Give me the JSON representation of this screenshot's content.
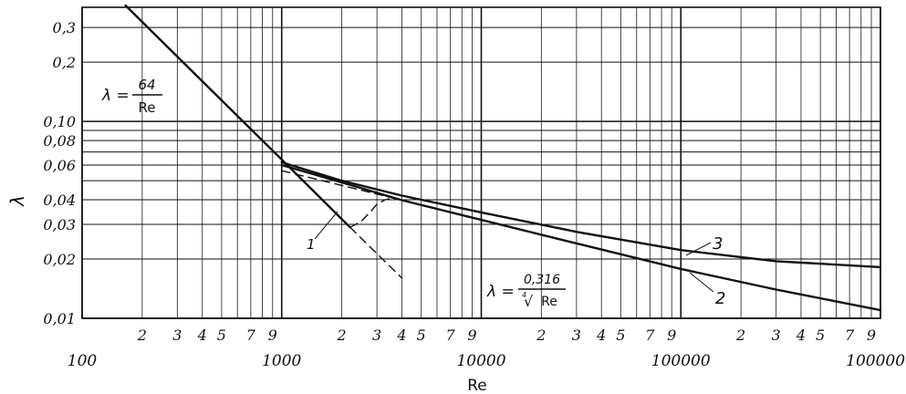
{
  "chart_data": {
    "type": "line",
    "x_scale": "log",
    "y_scale": "log",
    "xlim": [
      100,
      1000000
    ],
    "ylim": [
      0.01,
      0.38
    ],
    "xlabel": "Re",
    "ylabel": "λ",
    "grid": true,
    "x_major_ticks": [
      {
        "value": 100,
        "label": "100"
      },
      {
        "value": 1000,
        "label": "1000"
      },
      {
        "value": 10000,
        "label": "10000"
      },
      {
        "value": 100000,
        "label": "100000"
      },
      {
        "value": 1000000,
        "label": "1000000"
      }
    ],
    "x_minor_labels": [
      "2",
      "3",
      "4",
      "5",
      "7",
      "9"
    ],
    "x_minor_values": [
      2,
      3,
      4,
      5,
      7,
      9
    ],
    "x_grid_multipliers": [
      2,
      3,
      4,
      5,
      6,
      7,
      8,
      9
    ],
    "y_ticks": [
      {
        "value": 0.01,
        "label": "0,01"
      },
      {
        "value": 0.02,
        "label": "0,02"
      },
      {
        "value": 0.03,
        "label": "0,03"
      },
      {
        "value": 0.04,
        "label": "0,04"
      },
      {
        "value": 0.06,
        "label": "0,06"
      },
      {
        "value": 0.08,
        "label": "0,08"
      },
      {
        "value": 0.1,
        "label": "0,10"
      },
      {
        "value": 0.2,
        "label": "0,2"
      },
      {
        "value": 0.3,
        "label": "0,3"
      }
    ],
    "y_grid": [
      0.01,
      0.02,
      0.03,
      0.04,
      0.05,
      0.06,
      0.07,
      0.08,
      0.09,
      0.1,
      0.2,
      0.3
    ],
    "series": [
      {
        "id": "laminar",
        "style": "solid",
        "points": [
          [
            165,
            0.388
          ],
          [
            500,
            0.128
          ],
          [
            1000,
            0.064
          ],
          [
            2200,
            0.029
          ]
        ]
      },
      {
        "id": "laminar-extension",
        "style": "dashed",
        "points": [
          [
            2200,
            0.029
          ],
          [
            4000,
            0.016
          ]
        ]
      },
      {
        "id": "transition",
        "style": "dashed",
        "points": [
          [
            2200,
            0.029
          ],
          [
            2500,
            0.031
          ],
          [
            2800,
            0.035
          ],
          [
            3000,
            0.038
          ],
          [
            3300,
            0.04
          ],
          [
            3700,
            0.041
          ]
        ]
      },
      {
        "id": "blasius-dashed",
        "style": "dashed",
        "points": [
          [
            1000,
            0.0562
          ],
          [
            2000,
            0.0473
          ],
          [
            4000,
            0.0398
          ]
        ]
      },
      {
        "id": "curve-2",
        "style": "solid",
        "label": "2",
        "points": [
          [
            1000,
            0.06
          ],
          [
            2000,
            0.049
          ],
          [
            4000,
            0.0398
          ],
          [
            10000,
            0.0316
          ],
          [
            30000,
            0.024
          ],
          [
            100000,
            0.0178
          ],
          [
            300000,
            0.014
          ],
          [
            1000000,
            0.011
          ]
        ]
      },
      {
        "id": "curve-3",
        "style": "solid",
        "label": "3",
        "points": [
          [
            1000,
            0.062
          ],
          [
            2000,
            0.05
          ],
          [
            4000,
            0.042
          ],
          [
            10000,
            0.0345
          ],
          [
            30000,
            0.0275
          ],
          [
            100000,
            0.0222
          ],
          [
            300000,
            0.0195
          ],
          [
            1000000,
            0.0182
          ]
        ]
      }
    ],
    "annotations": {
      "laminar_formula": {
        "lhs": "λ =",
        "numerator": "64",
        "denominator": "Re"
      },
      "blasius_formula": {
        "lhs": "λ =",
        "numerator": "0,316",
        "denominator": "Re",
        "root_index": "4",
        "root_sign": "√"
      },
      "label_1": "1",
      "label_2": "2",
      "label_3": "3"
    }
  }
}
